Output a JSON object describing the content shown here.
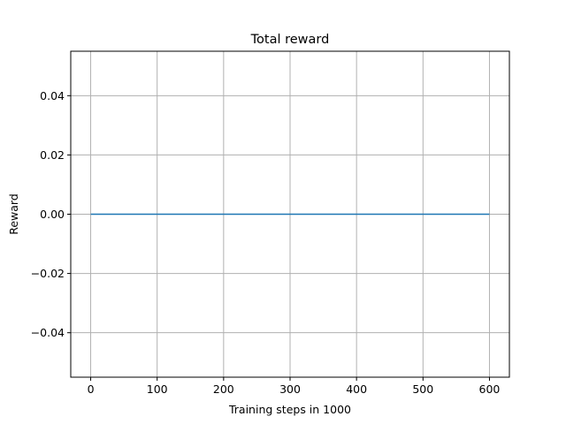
{
  "chart_data": {
    "type": "line",
    "title": "Total reward",
    "xlabel": "Training steps in 1000",
    "ylabel": "Reward",
    "xlim": [
      -30,
      630
    ],
    "ylim": [
      -0.055,
      0.055
    ],
    "xticks": [
      0,
      100,
      200,
      300,
      400,
      500,
      600
    ],
    "xtick_labels": [
      "0",
      "100",
      "200",
      "300",
      "400",
      "500",
      "600"
    ],
    "yticks": [
      -0.04,
      -0.02,
      0.0,
      0.02,
      0.04
    ],
    "ytick_labels": [
      "−0.04",
      "−0.02",
      "0.00",
      "0.02",
      "0.04"
    ],
    "grid": true,
    "series": [
      {
        "color": "#1f77b4",
        "x": [
          0,
          600
        ],
        "y": [
          0,
          0
        ]
      }
    ]
  }
}
